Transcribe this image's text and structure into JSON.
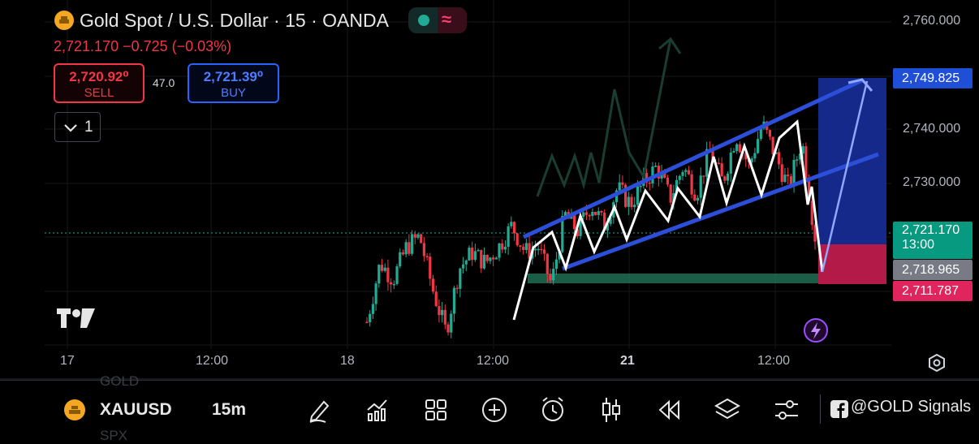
{
  "header": {
    "title": "Gold Spot / U.S. Dollar · 15 · OANDA",
    "price_change": "2,721.170  −0.725 (−0.03%)"
  },
  "trade": {
    "sell_price": "2,720.92⁰",
    "sell_label": "SELL",
    "spread": "47.0",
    "buy_price": "2,721.39⁰",
    "buy_label": "BUY"
  },
  "indicator_toggle": {
    "label": "1"
  },
  "y_axis": {
    "labels": [
      "2,760.000",
      "2,740.000",
      "2,730.000"
    ],
    "tags": {
      "target": "2,749.825",
      "last": "2,721.170",
      "countdown": "13:00",
      "entry": "2,718.965",
      "stop": "2,711.787"
    }
  },
  "x_axis": {
    "labels": [
      "17",
      "12:00",
      "18",
      "12:00",
      "21",
      "12:00"
    ]
  },
  "watermark": "TV",
  "bottom_bar": {
    "faded_top": "GOLD",
    "faded_bottom": "SPX",
    "symbol": "XAUUSD",
    "interval": "15m",
    "tools": [
      "draw-icon",
      "indicators-icon",
      "layouts-icon",
      "add-icon",
      "alert-icon",
      "bar-style-icon",
      "replay-icon",
      "layers-icon",
      "settings-icon"
    ],
    "signals": "@GOLD Signals"
  },
  "colors": {
    "up": "#22ab94",
    "down": "#f23645",
    "channel": "#2c4fd9",
    "target_zone": "#14298a",
    "stop_zone": "#b31a48"
  },
  "chart_data": {
    "type": "candlestick",
    "symbol": "XAUUSD",
    "interval": "15m",
    "y_range": [
      2700,
      2765
    ],
    "x_ticks": [
      "17",
      "12:00",
      "18",
      "12:00",
      "21",
      "12:00"
    ],
    "last_price": 2721.17,
    "position": {
      "entry": 2718.965,
      "target": 2749.825,
      "stop": 2711.787
    },
    "close_path": [
      2704,
      2715,
      2712,
      2718,
      2720,
      2710,
      2702,
      2714,
      2717,
      2715,
      2718,
      2722,
      2717,
      2718,
      2711,
      2724,
      2721,
      2726,
      2722,
      2729,
      2726,
      2730,
      2733,
      2727,
      2733,
      2728,
      2736,
      2730,
      2739,
      2733,
      2741,
      2735,
      2729,
      2738,
      2720
    ]
  }
}
